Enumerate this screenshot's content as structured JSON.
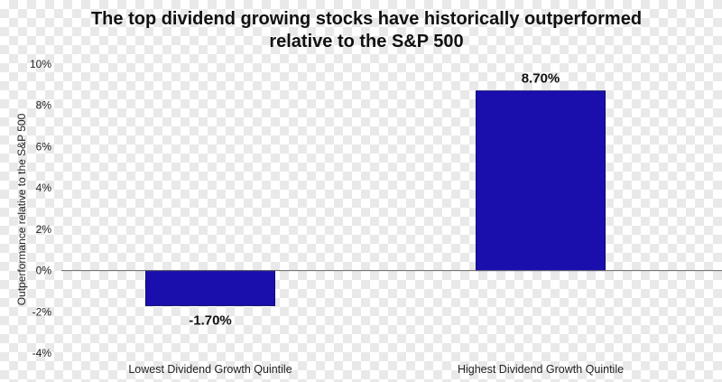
{
  "chart_data": {
    "type": "bar",
    "title_lines": [
      "The top dividend growing stocks have historically outperformed",
      "relative to the S&P 500"
    ],
    "ylabel": "Outperformance relative to the S&P 500",
    "xlabel": "",
    "categories": [
      "Lowest Dividend Growth Quintile",
      "Highest Dividend Growth Quintile"
    ],
    "values": [
      -1.7,
      8.7
    ],
    "data_labels": [
      "-1.70%",
      "8.70%"
    ],
    "ylim": [
      -4,
      10
    ],
    "yticks": [
      10,
      8,
      6,
      4,
      2,
      0,
      -2,
      -4
    ],
    "ytick_labels": [
      "10%",
      "8%",
      "6%",
      "4%",
      "2%",
      "0%",
      "-2%",
      "-4%"
    ],
    "bar_color": "#1a0fad",
    "grid": false,
    "legend": "none"
  }
}
